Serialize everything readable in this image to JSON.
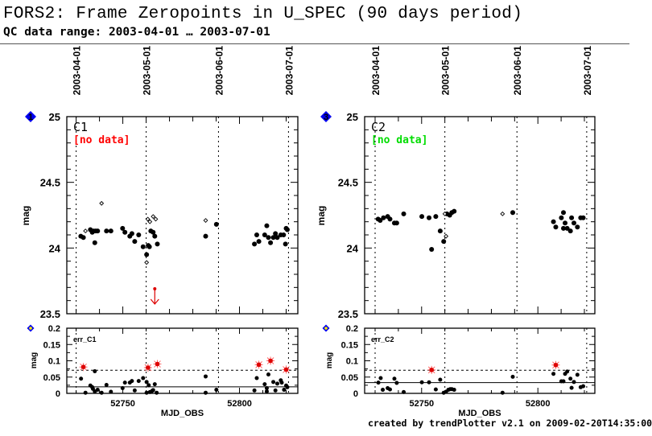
{
  "header": {
    "title": "FORS2: Frame Zeropoints in U_SPEC (90 days period)",
    "subtitle": "QC data range: 2003-04-01 … 2003-07-01"
  },
  "footer": "created by trendPlotter v2.1 on 2009-02-20T14:35:00",
  "colors": {
    "star": "#dd0000",
    "badge": "#0000ee",
    "badge_text": "#ffee00",
    "no_data_c1": "#ff0000",
    "no_data_c2": "#00dd00"
  },
  "chart_data": [
    {
      "type": "scatter",
      "badge": "1",
      "label": "C1",
      "status": "[no data]",
      "status_color": "#ff0000",
      "ylabel": "mag",
      "xlim": [
        52726,
        52825
      ],
      "ylim": [
        23.5,
        25
      ],
      "yticks": [
        "23.5",
        "24",
        "24.5",
        "25"
      ],
      "date_lines": [
        {
          "label": "2003-04-01",
          "mjd": 52730
        },
        {
          "label": "2003-05-01",
          "mjd": 52760
        },
        {
          "label": "2003-06-01",
          "mjd": 52791
        },
        {
          "label": "2003-07-01",
          "mjd": 52821
        }
      ],
      "filled": [
        [
          52732.0,
          24.09
        ],
        [
          52733.1,
          24.08
        ],
        [
          52736.1,
          24.14
        ],
        [
          52736.9,
          24.12
        ],
        [
          52737.5,
          24.13
        ],
        [
          52738.0,
          24.04
        ],
        [
          52738.4,
          24.13
        ],
        [
          52739.2,
          24.13
        ],
        [
          52743.0,
          24.13
        ],
        [
          52744.9,
          24.13
        ],
        [
          52749.9,
          24.15
        ],
        [
          52750.9,
          24.12
        ],
        [
          52753.0,
          24.09
        ],
        [
          52753.9,
          24.11
        ],
        [
          52755.1,
          24.05
        ],
        [
          52756.8,
          24.1
        ],
        [
          52758.7,
          24.01
        ],
        [
          52760.2,
          23.95
        ],
        [
          52760.9,
          24.02
        ],
        [
          52761.4,
          24.01
        ],
        [
          52762.0,
          24.13
        ],
        [
          52763.0,
          24.12
        ],
        [
          52763.7,
          24.09
        ],
        [
          52764.8,
          24.03
        ],
        [
          52785.5,
          24.09
        ],
        [
          52790.1,
          24.18
        ],
        [
          52806.4,
          24.03
        ],
        [
          52807.4,
          24.1
        ],
        [
          52808.3,
          24.05
        ],
        [
          52810.8,
          24.1
        ],
        [
          52811.7,
          24.17
        ],
        [
          52812.4,
          24.08
        ],
        [
          52813.3,
          24.04
        ],
        [
          52814.5,
          24.08
        ],
        [
          52815.4,
          24.11
        ],
        [
          52816.2,
          24.08
        ],
        [
          52817.7,
          24.1
        ],
        [
          52818.9,
          24.1
        ],
        [
          52819.7,
          24.03
        ],
        [
          52820.0,
          24.15
        ],
        [
          52820.5,
          24.14
        ]
      ],
      "open": [
        [
          52734.0,
          24.13
        ],
        [
          52740.9,
          24.34
        ],
        [
          52760.7,
          24.22
        ],
        [
          52761.6,
          24.2
        ],
        [
          52763.0,
          24.24
        ],
        [
          52764.1,
          24.22
        ],
        [
          52760.2,
          23.89
        ],
        [
          52785.5,
          24.21
        ]
      ],
      "outlier_arrows": [
        [
          52763.7,
          23.69
        ]
      ],
      "err": {
        "badge": "2",
        "label": "err_C1",
        "ylabel": "mag",
        "xlabel": "MJD_OBS",
        "ylim": [
          0,
          0.2
        ],
        "yticks": [
          "0",
          "0.05",
          "0.1",
          "0.15",
          "0.2"
        ],
        "xticks": [
          "52750",
          "52800"
        ],
        "threshold_dashed": 0.071,
        "threshold_solid": 0.02,
        "filled": [
          [
            52732.1,
            0.045
          ],
          [
            52734.0,
            0.002
          ],
          [
            52736.1,
            0.024
          ],
          [
            52736.9,
            0.019
          ],
          [
            52737.2,
            0.014
          ],
          [
            52738.0,
            0.006
          ],
          [
            52738.0,
            0.068
          ],
          [
            52739.2,
            0.011
          ],
          [
            52740.9,
            0.002
          ],
          [
            52743.0,
            0.026
          ],
          [
            52744.9,
            0.005
          ],
          [
            52749.9,
            0.016
          ],
          [
            52750.9,
            0.033
          ],
          [
            52753.0,
            0.033
          ],
          [
            52753.9,
            0.038
          ],
          [
            52755.1,
            0.009
          ],
          [
            52756.8,
            0.038
          ],
          [
            52758.7,
            0.047
          ],
          [
            52760.2,
            0.035
          ],
          [
            52761.1,
            0.025
          ],
          [
            52760.2,
            0.002
          ],
          [
            52761.6,
            0.004
          ],
          [
            52762.5,
            0.007
          ],
          [
            52763.0,
            0.01
          ],
          [
            52763.7,
            0.028
          ],
          [
            52764.5,
            0.002
          ],
          [
            52785.5,
            0.052
          ],
          [
            52785.5,
            0.002
          ],
          [
            52790.1,
            0.011
          ],
          [
            52806.4,
            0.009
          ],
          [
            52807.4,
            0.047
          ],
          [
            52810.8,
            0.028
          ],
          [
            52811.7,
            0.016
          ],
          [
            52811.7,
            0.006
          ],
          [
            52812.4,
            0.058
          ],
          [
            52814.5,
            0.035
          ],
          [
            52815.4,
            0.009
          ],
          [
            52816.2,
            0.03
          ],
          [
            52817.7,
            0.04
          ],
          [
            52818.1,
            0.033
          ],
          [
            52819.1,
            0.011
          ],
          [
            52820.0,
            0.024
          ],
          [
            52820.5,
            0.019
          ]
        ],
        "stars": [
          [
            52733.1,
            0.081
          ],
          [
            52760.8,
            0.079
          ],
          [
            52764.8,
            0.09
          ],
          [
            52808.3,
            0.088
          ],
          [
            52813.3,
            0.1
          ],
          [
            52820.0,
            0.073
          ]
        ]
      }
    },
    {
      "type": "scatter",
      "badge": "3",
      "label": "C2",
      "status": "[no data]",
      "status_color": "#00dd00",
      "ylabel": "mag",
      "xlim": [
        52725.5,
        52824.5
      ],
      "ylim": [
        23.5,
        25
      ],
      "yticks": [
        "23.5",
        "24",
        "24.5",
        "25"
      ],
      "date_lines": [
        {
          "label": "2003-04-01",
          "mjd": 52730
        },
        {
          "label": "2003-05-01",
          "mjd": 52760
        },
        {
          "label": "2003-06-01",
          "mjd": 52791
        },
        {
          "label": "2003-07-01",
          "mjd": 52821
        }
      ],
      "filled": [
        [
          52731.3,
          24.22
        ],
        [
          52732.2,
          24.21
        ],
        [
          52733.6,
          24.23
        ],
        [
          52735.4,
          24.24
        ],
        [
          52736.4,
          24.22
        ],
        [
          52738.3,
          24.19
        ],
        [
          52739.3,
          24.19
        ],
        [
          52742.3,
          24.26
        ],
        [
          52750.1,
          24.24
        ],
        [
          52753.2,
          24.23
        ],
        [
          52756.1,
          24.24
        ],
        [
          52754.3,
          23.99
        ],
        [
          52758.0,
          24.13
        ],
        [
          52759.5,
          24.05
        ],
        [
          52760.9,
          24.26
        ],
        [
          52762.1,
          24.25
        ],
        [
          52763.0,
          24.27
        ],
        [
          52764.0,
          24.28
        ],
        [
          52789.2,
          24.27
        ],
        [
          52806.7,
          24.2
        ],
        [
          52807.7,
          24.16
        ],
        [
          52810.1,
          24.23
        ],
        [
          52811.0,
          24.27
        ],
        [
          52811.7,
          24.19
        ],
        [
          52811.0,
          24.15
        ],
        [
          52812.6,
          24.15
        ],
        [
          52814.0,
          24.13
        ],
        [
          52814.5,
          24.23
        ],
        [
          52815.5,
          24.19
        ],
        [
          52817.0,
          24.16
        ],
        [
          52818.4,
          24.23
        ],
        [
          52819.5,
          24.23
        ]
      ],
      "open": [
        [
          52760.0,
          24.26
        ],
        [
          52760.5,
          24.09
        ],
        [
          52784.8,
          24.26
        ]
      ],
      "outlier_arrows": [],
      "err": {
        "badge": "4",
        "label": "err_C2",
        "ylabel": "mag",
        "xlabel": "MJD_OBS",
        "ylim": [
          0,
          0.2
        ],
        "yticks": [
          "0",
          "0.05",
          "0.1",
          "0.15",
          "0.2"
        ],
        "xticks": [
          "52750",
          "52800"
        ],
        "threshold_dashed": 0.071,
        "threshold_solid": 0.033,
        "filled": [
          [
            52731.4,
            0.033
          ],
          [
            52732.4,
            0.047
          ],
          [
            52733.3,
            0.011
          ],
          [
            52735.4,
            0.016
          ],
          [
            52736.4,
            0.012
          ],
          [
            52738.3,
            0.045
          ],
          [
            52739.3,
            0.032
          ],
          [
            52742.3,
            0.004
          ],
          [
            52750.1,
            0.034
          ],
          [
            52753.2,
            0.034
          ],
          [
            52756.1,
            0.012
          ],
          [
            52758.0,
            0.042
          ],
          [
            52759.5,
            0.002
          ],
          [
            52760.5,
            0.005
          ],
          [
            52761.5,
            0.011
          ],
          [
            52762.3,
            0.013
          ],
          [
            52763.0,
            0.013
          ],
          [
            52764.0,
            0.011
          ],
          [
            52784.8,
            0.002
          ],
          [
            52789.2,
            0.051
          ],
          [
            52806.7,
            0.06
          ],
          [
            52810.1,
            0.037
          ],
          [
            52811.0,
            0.037
          ],
          [
            52811.7,
            0.06
          ],
          [
            52812.6,
            0.067
          ],
          [
            52814.0,
            0.045
          ],
          [
            52814.5,
            0.017
          ],
          [
            52815.5,
            0.035
          ],
          [
            52817.0,
            0.057
          ],
          [
            52818.4,
            0.019
          ],
          [
            52819.5,
            0.022
          ]
        ],
        "stars": [
          [
            52754.3,
            0.072
          ],
          [
            52807.7,
            0.087
          ]
        ]
      }
    }
  ]
}
